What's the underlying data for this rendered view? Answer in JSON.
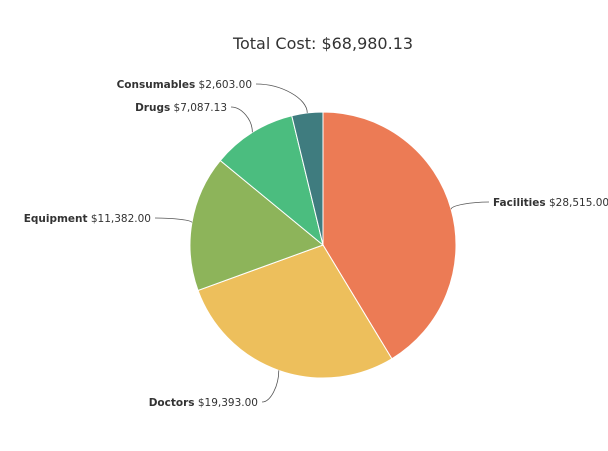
{
  "chart_data": {
    "type": "pie",
    "title": "Total Cost: $68,980.13",
    "slices": [
      {
        "name": "Facilities",
        "value": 28515.0,
        "label_value": "$28,515.00",
        "color": "#EC7B55"
      },
      {
        "name": "Doctors",
        "value": 19393.0,
        "label_value": "$19,393.00",
        "color": "#EDBF5C"
      },
      {
        "name": "Equipment",
        "value": 11382.0,
        "label_value": "$11,382.00",
        "color": "#8DB45A"
      },
      {
        "name": "Drugs",
        "value": 7087.13,
        "label_value": "$7,087.13",
        "color": "#4BBD7F"
      },
      {
        "name": "Consumables",
        "value": 2603.0,
        "label_value": "$2,603.00",
        "color": "#3F7C7F"
      }
    ],
    "start_angle": "top",
    "direction": "clockwise",
    "legend": "none"
  }
}
